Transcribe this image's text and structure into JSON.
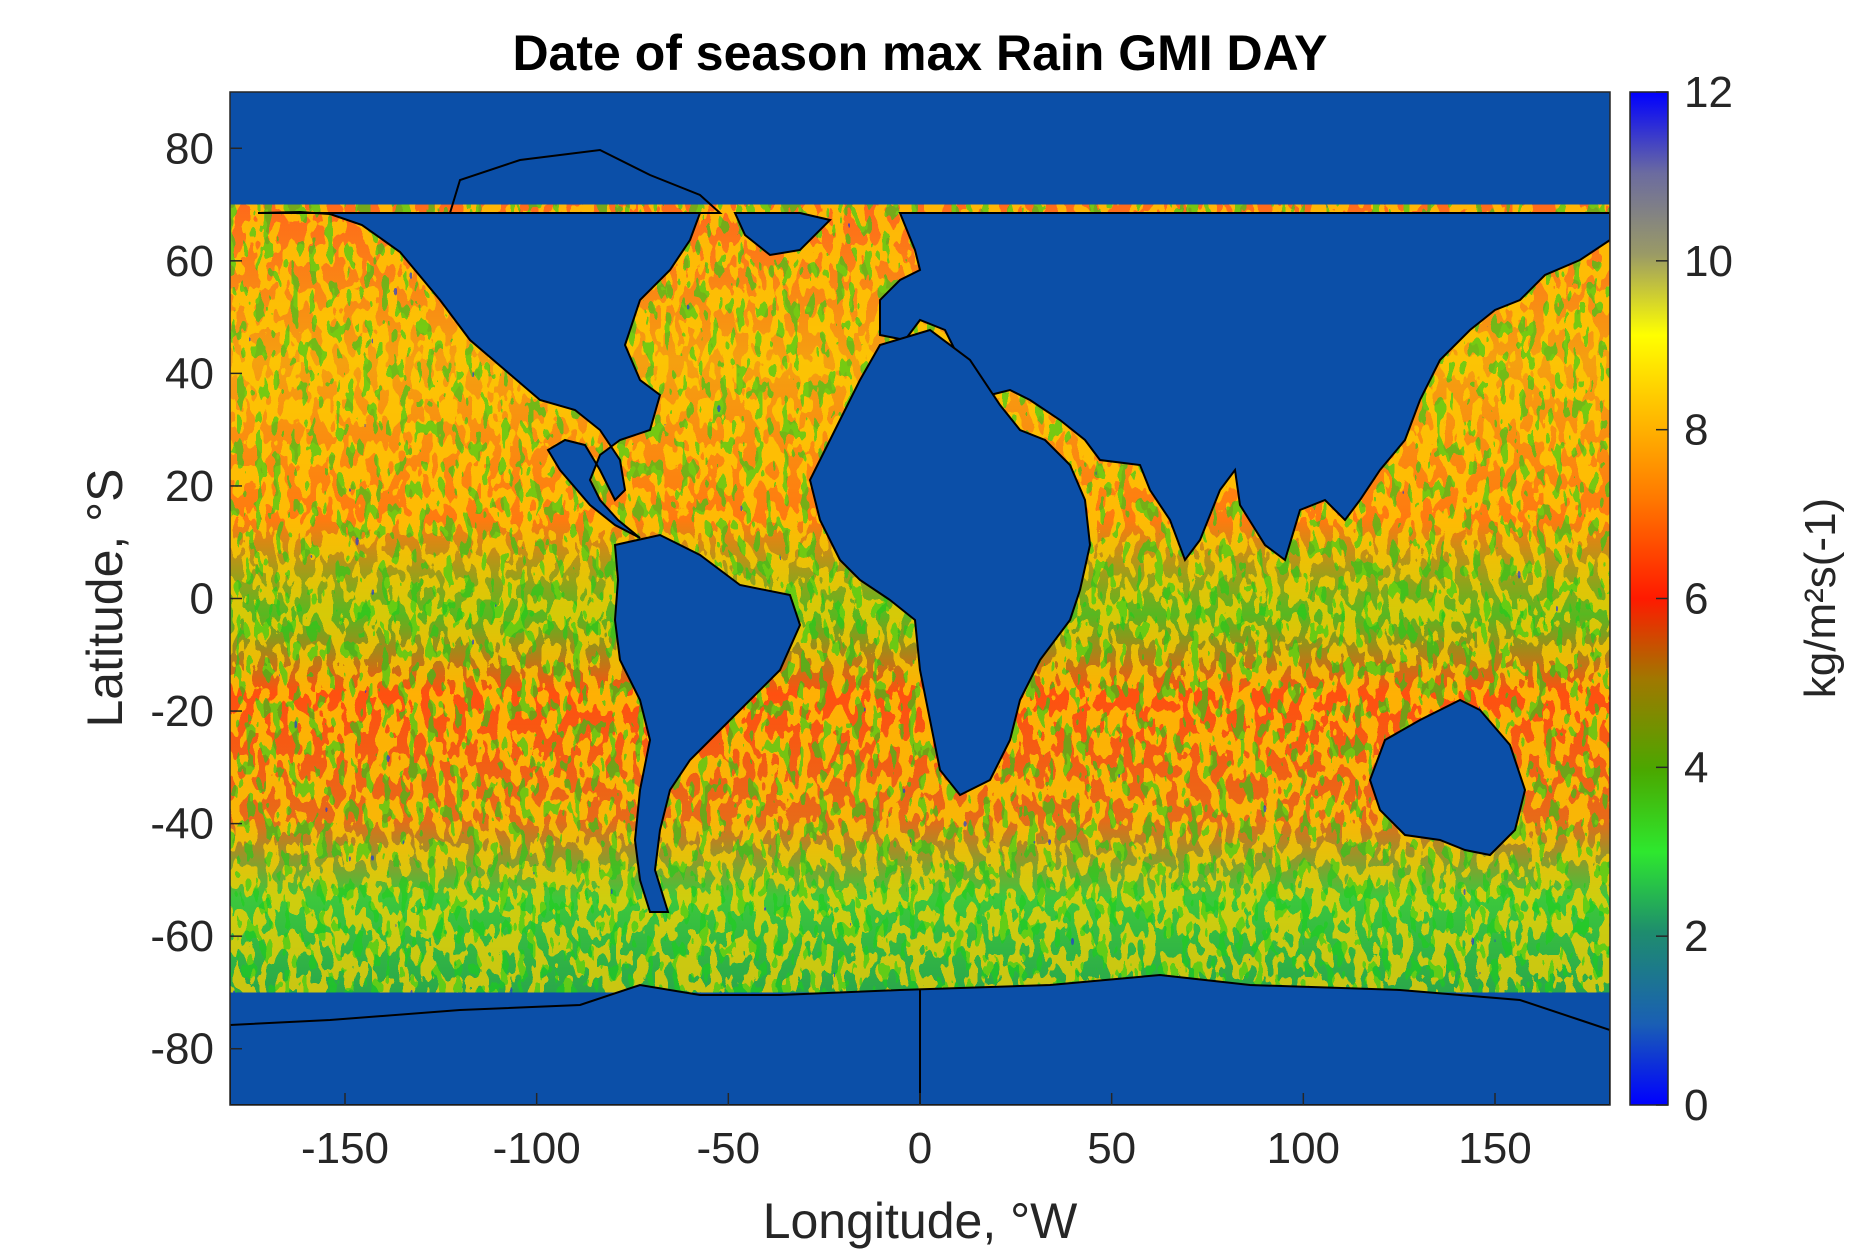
{
  "figure": {
    "title": "Date of season max Rain GMI DAY",
    "xlabel": "Longitude, °W",
    "ylabel": "Latitude, °S",
    "colorbar_label": "kg/m²s(-1)"
  },
  "chart_data": {
    "type": "heatmap",
    "title": "Date of season max Rain GMI DAY",
    "xlabel": "Longitude, °W",
    "ylabel": "Latitude, °S",
    "xlim": [
      -180,
      180
    ],
    "ylim": [
      -90,
      90
    ],
    "xticks": [
      -150,
      -100,
      -50,
      0,
      50,
      100,
      150
    ],
    "yticks": [
      80,
      60,
      40,
      20,
      0,
      -20,
      -40,
      -60,
      -80
    ],
    "data_latitude_range": [
      -70,
      70
    ],
    "colorbar": {
      "label": "kg/m²s(-1)",
      "range": [
        0,
        12
      ],
      "ticks": [
        12,
        10,
        8,
        6,
        4,
        2,
        0
      ],
      "colormap": [
        "#0000ff",
        "#1a5fb4",
        "#1e8c6e",
        "#2ee82e",
        "#4aa800",
        "#a07800",
        "#ff1a00",
        "#ff8c00",
        "#ffff00",
        "#9a9a66",
        "#6b6ba0",
        "#0000ff"
      ]
    },
    "land_color": "#0b4fa8",
    "coastline_color": "#000000",
    "grid": false
  }
}
